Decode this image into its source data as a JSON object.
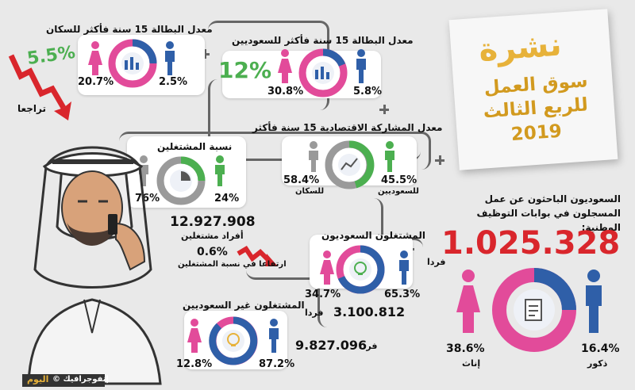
{
  "notice": {
    "title": "نشرة",
    "subtitle": "سوق العمل",
    "quarter": "للربع الثالث",
    "year": "2019"
  },
  "unemployment_all": {
    "title": "معدل البطالة 15 سنة فأكثر للسكان",
    "male": "2.5%",
    "female": "20.7%",
    "change": "5.5%",
    "change_label": "تراجعا"
  },
  "unemployment_saudi": {
    "title": "معدل البطالة 15 سنة فأكثر للسعوديين",
    "male": "5.8%",
    "female": "30.8%",
    "total": "12%"
  },
  "participation": {
    "title": "معدل المشاركة الاقتصادية 15 سنة فأكثر",
    "saudi": "45.5%",
    "saudi_label": "للسعوديين",
    "pop": "58.4%",
    "pop_label": "للسكان"
  },
  "employed_ratio": {
    "title": "نسبة المشتغلين",
    "value_a": "24%",
    "value_b": "76%",
    "count": "12.927.908",
    "count_label": "أفراد مشتغلين",
    "increase": "0.6%",
    "increase_label": "ارتفاعا في نسبة المشتغلين"
  },
  "saudi_employed": {
    "title": "المشتغلون السعوديون",
    "male": "65.3%",
    "female": "34.7%",
    "count": "3.100.812",
    "unit": "فردا"
  },
  "non_saudi_employed": {
    "title": "المشتغلون غير السعوديين",
    "male": "87.2%",
    "female": "12.8%",
    "count": "9.827.096",
    "unit": "فردا"
  },
  "job_seekers": {
    "title": "السعوديون الباحثون عن عمل المسجلون في بوابات التوظيف الوطنية:",
    "count": "1.025.328",
    "unit": "فردا",
    "male": "16.4%",
    "male_label": "ذكور",
    "female": "38.6%",
    "female_label": "إناث"
  },
  "credit": {
    "text": "إنفوجرافيك ©",
    "brand": "اليوم"
  },
  "colors": {
    "pink": "#e24b9a",
    "blue": "#2f5fa8",
    "green": "#4caf50",
    "gray": "#9a9a9a",
    "red": "#d9262c"
  }
}
